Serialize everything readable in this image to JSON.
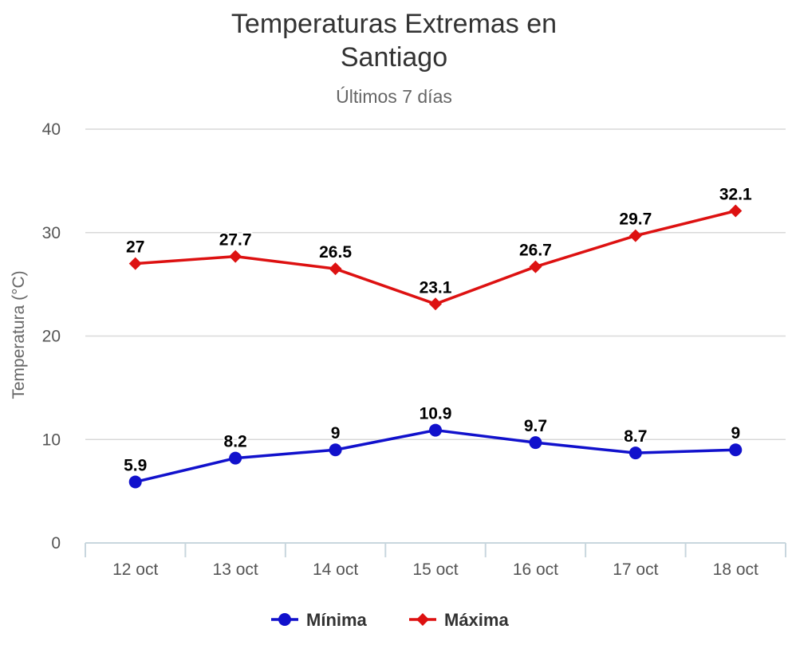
{
  "chart_data": {
    "type": "line",
    "title_lines": [
      "Temperaturas Extremas en",
      "Santiago"
    ],
    "subtitle": "Últimos 7 días",
    "ylabel": "Temperatura (°C)",
    "xlabel": "",
    "categories": [
      "12 oct",
      "13 oct",
      "14 oct",
      "15 oct",
      "16 oct",
      "17 oct",
      "18 oct"
    ],
    "ylim": [
      0,
      40
    ],
    "yticks": [
      0,
      10,
      20,
      30,
      40
    ],
    "grid": true,
    "legend_position": "bottom-center",
    "series": [
      {
        "name": "Mínima",
        "values": [
          5.9,
          8.2,
          9,
          10.9,
          9.7,
          8.7,
          9
        ],
        "color": "#1111cc",
        "marker": "circle"
      },
      {
        "name": "Máxima",
        "values": [
          27,
          27.7,
          26.5,
          23.1,
          26.7,
          29.7,
          32.1
        ],
        "color": "#dd1111",
        "marker": "diamond"
      }
    ]
  }
}
